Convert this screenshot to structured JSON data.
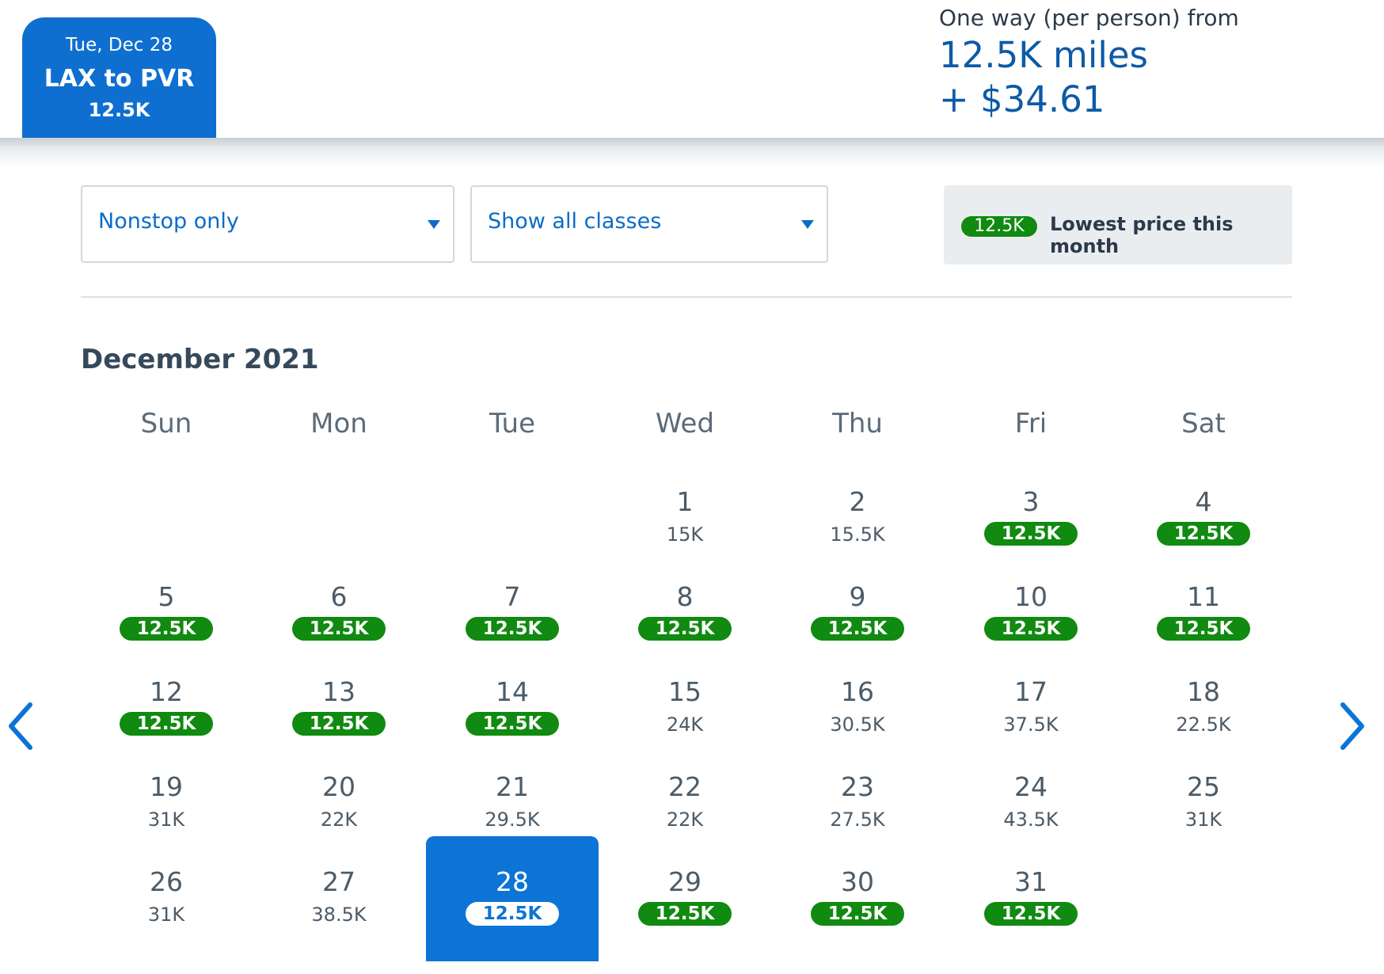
{
  "header": {
    "tab": {
      "date": "Tue, Dec 28",
      "route": "LAX to PVR",
      "price": "12.5K"
    },
    "fare": {
      "label": "One way (per person) from",
      "miles": "12.5K miles",
      "cash": "+ $34.61"
    }
  },
  "filters": {
    "stops": {
      "value": "Nonstop only"
    },
    "cabin": {
      "value": "Show all classes"
    }
  },
  "legend": {
    "pill": "12.5K",
    "text": "Lowest price this month"
  },
  "calendar": {
    "month": "December 2021",
    "weekdays": [
      "Sun",
      "Mon",
      "Tue",
      "Wed",
      "Thu",
      "Fri",
      "Sat"
    ],
    "first_weekday": 3,
    "selected_day": 28,
    "days": [
      {
        "day": "1",
        "price": "15K",
        "lowest": false
      },
      {
        "day": "2",
        "price": "15.5K",
        "lowest": false
      },
      {
        "day": "3",
        "price": "12.5K",
        "lowest": true
      },
      {
        "day": "4",
        "price": "12.5K",
        "lowest": true
      },
      {
        "day": "5",
        "price": "12.5K",
        "lowest": true
      },
      {
        "day": "6",
        "price": "12.5K",
        "lowest": true
      },
      {
        "day": "7",
        "price": "12.5K",
        "lowest": true
      },
      {
        "day": "8",
        "price": "12.5K",
        "lowest": true
      },
      {
        "day": "9",
        "price": "12.5K",
        "lowest": true
      },
      {
        "day": "10",
        "price": "12.5K",
        "lowest": true
      },
      {
        "day": "11",
        "price": "12.5K",
        "lowest": true
      },
      {
        "day": "12",
        "price": "12.5K",
        "lowest": true
      },
      {
        "day": "13",
        "price": "12.5K",
        "lowest": true
      },
      {
        "day": "14",
        "price": "12.5K",
        "lowest": true
      },
      {
        "day": "15",
        "price": "24K",
        "lowest": false
      },
      {
        "day": "16",
        "price": "30.5K",
        "lowest": false
      },
      {
        "day": "17",
        "price": "37.5K",
        "lowest": false
      },
      {
        "day": "18",
        "price": "22.5K",
        "lowest": false
      },
      {
        "day": "19",
        "price": "31K",
        "lowest": false
      },
      {
        "day": "20",
        "price": "22K",
        "lowest": false
      },
      {
        "day": "21",
        "price": "29.5K",
        "lowest": false
      },
      {
        "day": "22",
        "price": "22K",
        "lowest": false
      },
      {
        "day": "23",
        "price": "27.5K",
        "lowest": false
      },
      {
        "day": "24",
        "price": "43.5K",
        "lowest": false
      },
      {
        "day": "25",
        "price": "31K",
        "lowest": false
      },
      {
        "day": "26",
        "price": "31K",
        "lowest": false
      },
      {
        "day": "27",
        "price": "38.5K",
        "lowest": false
      },
      {
        "day": "28",
        "price": "12.5K",
        "lowest": true
      },
      {
        "day": "29",
        "price": "12.5K",
        "lowest": true
      },
      {
        "day": "30",
        "price": "12.5K",
        "lowest": true
      },
      {
        "day": "31",
        "price": "12.5K",
        "lowest": true
      }
    ]
  },
  "colors": {
    "brand_blue": "#0b74d6",
    "lowest_green": "#108a10",
    "text_gray": "#4b5b68"
  },
  "icons": {
    "prev": "chevron-left-icon",
    "next": "chevron-right-icon",
    "dropdown": "caret-down-icon"
  }
}
